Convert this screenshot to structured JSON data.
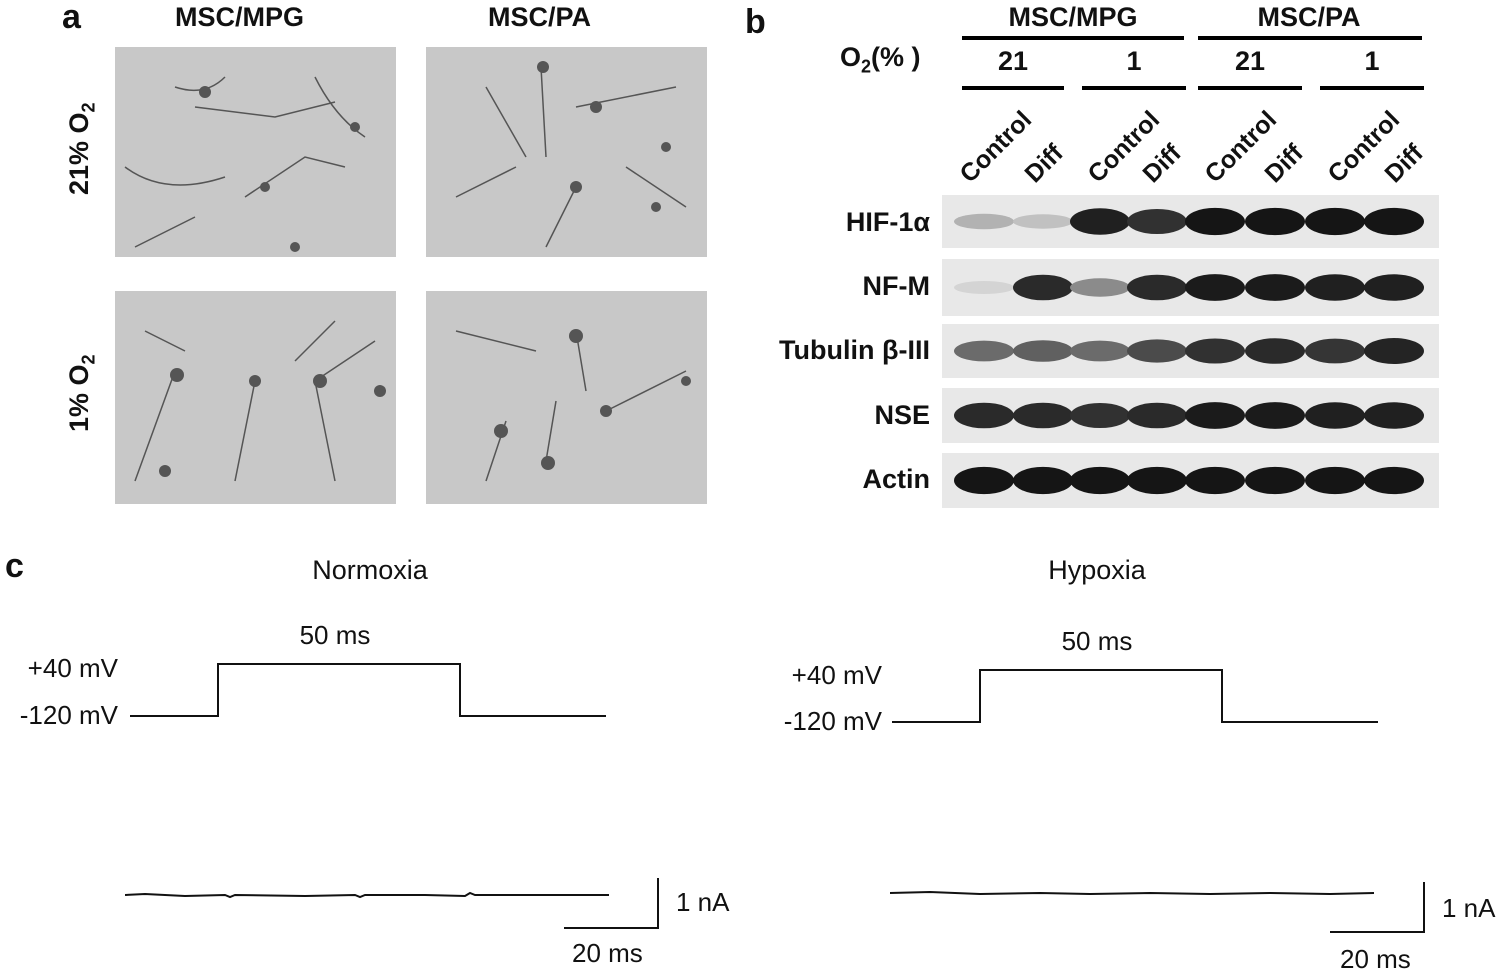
{
  "panel_a": {
    "letter": "a",
    "columns": [
      "MSC/MPG",
      "MSC/PA"
    ],
    "rows": [
      {
        "label_main": "21% O",
        "label_sub": "2"
      },
      {
        "label_main": "1% O",
        "label_sub": "2"
      }
    ]
  },
  "panel_b": {
    "letter": "b",
    "o2_label_main": "O",
    "o2_label_sub": "2",
    "o2_label_tail": "(% )",
    "groups": [
      {
        "name": "MSC/MPG",
        "levels": [
          "21",
          "1"
        ]
      },
      {
        "name": "MSC/PA",
        "levels": [
          "21",
          "1"
        ]
      }
    ],
    "lane_labels": [
      "Control",
      "Diff",
      "Control",
      "Diff",
      "Control",
      "Diff",
      "Control",
      "Diff"
    ],
    "proteins": [
      {
        "name": "HIF-1α",
        "intensity": [
          0.22,
          0.15,
          0.9,
          0.82,
          0.95,
          0.95,
          0.95,
          0.95
        ]
      },
      {
        "name": "NF-M",
        "intensity": [
          0.06,
          0.85,
          0.4,
          0.85,
          0.92,
          0.92,
          0.9,
          0.9
        ]
      },
      {
        "name": "Tubulin β-III",
        "intensity": [
          0.55,
          0.6,
          0.55,
          0.7,
          0.82,
          0.85,
          0.8,
          0.88
        ]
      },
      {
        "name": "NSE",
        "intensity": [
          0.85,
          0.85,
          0.82,
          0.85,
          0.92,
          0.92,
          0.9,
          0.9
        ]
      },
      {
        "name": "Actin",
        "intensity": [
          0.95,
          0.95,
          0.95,
          0.95,
          0.95,
          0.95,
          0.95,
          0.95
        ]
      }
    ]
  },
  "panel_c": {
    "letter": "c",
    "traces": [
      {
        "title": "Normoxia",
        "step_high": "+40 mV",
        "step_low": "-120 mV",
        "step_duration": "50 ms",
        "scale_current": "1 nA",
        "scale_time": "20 ms"
      },
      {
        "title": "Hypoxia",
        "step_high": "+40 mV",
        "step_low": "-120 mV",
        "step_duration": "50 ms",
        "scale_current": "1 nA",
        "scale_time": "20 ms"
      }
    ]
  }
}
